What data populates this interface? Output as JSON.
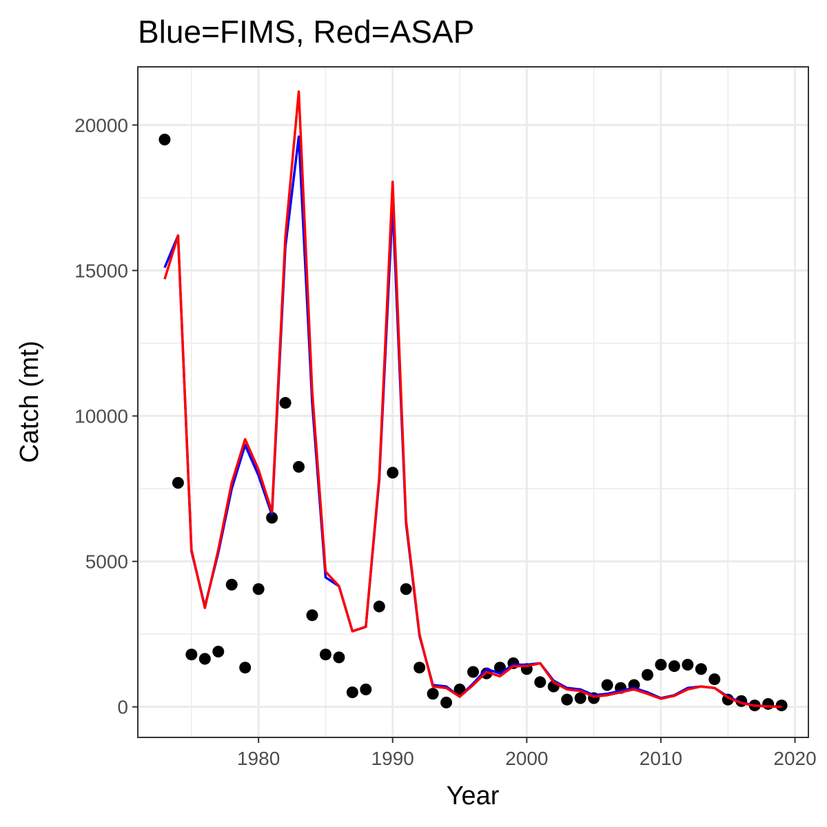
{
  "chart_data": {
    "type": "line",
    "title": "Blue=FIMS, Red=ASAP",
    "xlabel": "Year",
    "ylabel": "Catch (mt)",
    "xlim": [
      1971,
      2021
    ],
    "ylim": [
      -1050,
      22000
    ],
    "x_ticks": [
      1980,
      1990,
      2000,
      2010,
      2020
    ],
    "x_tick_labels": [
      "1980",
      "1990",
      "2000",
      "2010",
      "2020"
    ],
    "y_ticks": [
      0,
      5000,
      10000,
      15000,
      20000
    ],
    "y_tick_labels": [
      "0",
      "5000",
      "10000",
      "15000",
      "20000"
    ],
    "grid": true,
    "legend": "none",
    "x": [
      1973,
      1974,
      1975,
      1976,
      1977,
      1978,
      1979,
      1980,
      1981,
      1982,
      1983,
      1984,
      1985,
      1986,
      1987,
      1988,
      1989,
      1990,
      1991,
      1992,
      1993,
      1994,
      1995,
      1996,
      1997,
      1998,
      1999,
      2000,
      2001,
      2002,
      2003,
      2004,
      2005,
      2006,
      2007,
      2008,
      2009,
      2010,
      2011,
      2012,
      2013,
      2014,
      2015,
      2016,
      2017,
      2018,
      2019
    ],
    "series": [
      {
        "kind": "points",
        "color": "#000000",
        "values": [
          19500,
          7700,
          1800,
          1650,
          1900,
          4200,
          1350,
          4050,
          6500,
          10450,
          8250,
          3150,
          1800,
          1700,
          500,
          600,
          3450,
          8050,
          4050,
          1350,
          450,
          150,
          600,
          1200,
          1150,
          1350,
          1500,
          1300,
          850,
          700,
          250,
          300,
          300,
          750,
          650,
          750,
          1100,
          1450,
          1400,
          1450,
          1300,
          950,
          250,
          200,
          50,
          100,
          50
        ]
      },
      {
        "kind": "line",
        "color": "#0000ff",
        "values": [
          15100,
          16200,
          5350,
          3450,
          5300,
          7500,
          9000,
          7950,
          6600,
          15800,
          19600,
          10450,
          4450,
          4150,
          2600,
          2750,
          7800,
          17300,
          6300,
          2450,
          750,
          700,
          350,
          800,
          1300,
          1150,
          1450,
          1450,
          1500,
          900,
          650,
          600,
          400,
          450,
          550,
          650,
          500,
          300,
          400,
          650,
          700,
          650,
          350,
          150,
          50,
          20,
          10
        ]
      },
      {
        "kind": "line",
        "color": "#ff0000",
        "values": [
          14700,
          16200,
          5400,
          3400,
          5400,
          7700,
          9200,
          8150,
          6700,
          16150,
          21150,
          10850,
          4650,
          4150,
          2600,
          2750,
          7900,
          18050,
          6400,
          2500,
          700,
          650,
          350,
          750,
          1200,
          1050,
          1400,
          1400,
          1500,
          850,
          600,
          550,
          350,
          400,
          500,
          600,
          450,
          280,
          380,
          600,
          700,
          650,
          320,
          130,
          40,
          15,
          5
        ]
      }
    ]
  }
}
